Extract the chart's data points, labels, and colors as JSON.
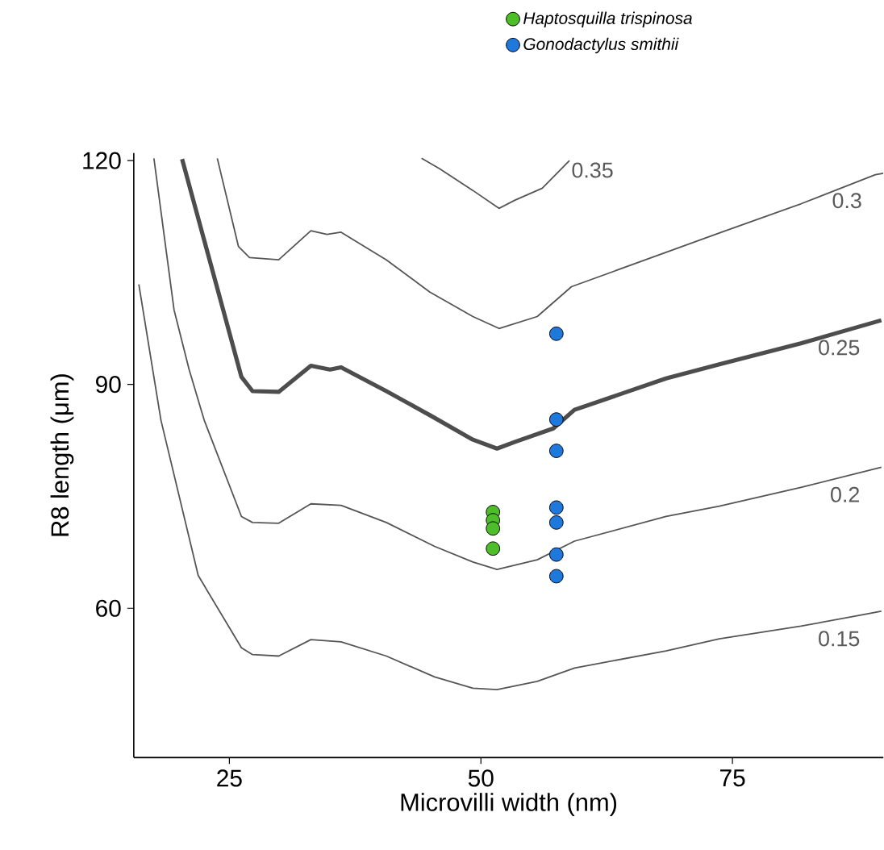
{
  "chart_data": {
    "type": "line",
    "xlabel": "Microvilli width (nm)",
    "ylabel": "R8 length (μm)",
    "xlim": [
      15.5,
      90
    ],
    "ylim": [
      40,
      121
    ],
    "xticks": [
      25,
      50,
      75
    ],
    "yticks": [
      60,
      90,
      120
    ],
    "legend": "top",
    "line_style": "solid",
    "series": [
      {
        "name": "0.35",
        "color": "#555555",
        "x": [
          44.1,
          45.9,
          49.2,
          51.8,
          53.4,
          56.1,
          58.8
        ],
        "values": [
          120.3,
          118.9,
          116.0,
          113.6,
          114.7,
          116.3,
          120.0
        ]
      },
      {
        "name": "0.3",
        "color": "#555555",
        "x": [
          23.8,
          25.9,
          27.0,
          29.9,
          33.1,
          34.7,
          36.1,
          40.6,
          44.9,
          49.2,
          51.8,
          55.6,
          59.0,
          68.4,
          73.7,
          81.8,
          89.2,
          90
        ],
        "values": [
          120.3,
          108.5,
          107.0,
          106.7,
          110.6,
          110.1,
          110.4,
          106.7,
          102.4,
          99.1,
          97.5,
          99.1,
          103.1,
          107.7,
          110.3,
          114.2,
          118.1,
          118.3
        ]
      },
      {
        "name": "0.25",
        "color": "#4d4d4d",
        "x": [
          20.3,
          26.2,
          27.3,
          29.9,
          33.1,
          35.0,
          36.1,
          40.6,
          44.9,
          49.2,
          51.6,
          53.4,
          57.2,
          59.3,
          68.4,
          73.7,
          81.8,
          89.8
        ],
        "values": [
          120.2,
          91.0,
          89.1,
          89.0,
          92.5,
          92.0,
          92.3,
          89.1,
          85.9,
          82.6,
          81.4,
          82.3,
          84.1,
          86.6,
          90.8,
          92.7,
          95.5,
          98.6
        ]
      },
      {
        "name": "0.2",
        "color": "#555555",
        "x": [
          17.5,
          19.5,
          21.0,
          22.5,
          26.2,
          27.3,
          29.9,
          33.1,
          36.1,
          40.6,
          45.4,
          49.2,
          51.6,
          55.6,
          59.3,
          68.4,
          73.7,
          81.8,
          89.8
        ],
        "values": [
          120.3,
          100.0,
          92.0,
          85.2,
          72.3,
          71.5,
          71.4,
          74.0,
          73.8,
          71.5,
          68.3,
          66.2,
          65.2,
          66.5,
          69.0,
          72.3,
          73.7,
          76.2,
          78.9
        ]
      },
      {
        "name": "0.15",
        "color": "#555555",
        "x": [
          16.0,
          18.2,
          21.9,
          26.2,
          27.3,
          29.9,
          33.1,
          36.1,
          40.6,
          45.4,
          49.2,
          51.6,
          55.6,
          59.3,
          68.4,
          73.7,
          81.8,
          89.8
        ],
        "values": [
          103.4,
          85.2,
          64.4,
          54.7,
          53.8,
          53.6,
          55.8,
          55.5,
          53.6,
          50.8,
          49.3,
          49.1,
          50.2,
          52.0,
          54.3,
          55.9,
          57.6,
          59.6
        ]
      },
      {
        "name": "Haptosquilla trispinosa",
        "type": "scatter",
        "marker": "circle",
        "color": "#4dbd2a",
        "x": [
          51.2,
          51.2,
          51.2,
          51.2
        ],
        "values": [
          72.9,
          71.8,
          70.7,
          68.0
        ]
      },
      {
        "name": "Gonodactylus smithii",
        "type": "scatter",
        "marker": "circle",
        "color": "#1f78dc",
        "x": [
          57.5,
          57.5,
          57.5,
          57.5,
          57.5,
          57.5,
          57.5
        ],
        "values": [
          96.8,
          85.3,
          81.1,
          73.5,
          71.5,
          67.2,
          64.3
        ]
      }
    ]
  }
}
